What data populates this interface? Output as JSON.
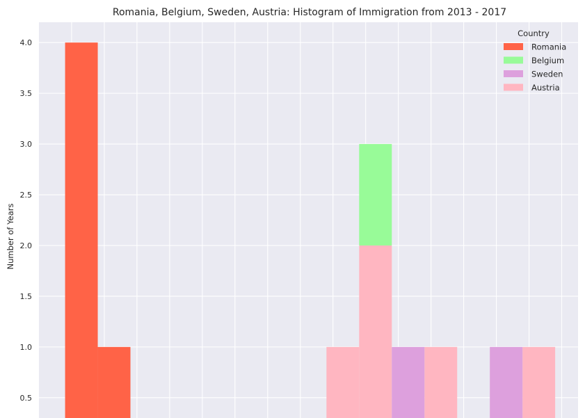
{
  "chart_data": {
    "type": "bar",
    "title": "Romania, Belgium, Sweden, Austria: Histogram of Immigration from 2013 - 2017",
    "xlabel": "",
    "ylabel": "Number of Years",
    "ylim": [
      0.3,
      4.2
    ],
    "xlim": [
      0,
      16.5
    ],
    "yticks": [
      0.5,
      1.0,
      1.5,
      2.0,
      2.5,
      3.0,
      3.5,
      4.0
    ],
    "ytick_labels": [
      "0.5",
      "1.0",
      "1.5",
      "2.0",
      "2.5",
      "3.0",
      "3.5",
      "4.0"
    ],
    "x_gridlines": [
      1,
      2,
      3,
      4,
      5,
      6,
      7,
      8,
      9,
      10,
      11,
      12,
      13,
      14,
      15,
      16
    ],
    "stacked": true,
    "grid": true,
    "legend": {
      "title": "Country",
      "position": "top-right"
    },
    "series": [
      {
        "name": "Romania",
        "color": "#ff6347",
        "bins": [
          {
            "x0": 0.8,
            "x1": 1.8,
            "value": 4
          },
          {
            "x0": 1.8,
            "x1": 2.8,
            "value": 1
          }
        ]
      },
      {
        "name": "Austria",
        "color": "#ffb6c1",
        "bins": [
          {
            "x0": 8.8,
            "x1": 9.8,
            "value": 1
          },
          {
            "x0": 9.8,
            "x1": 10.8,
            "value": 2
          },
          {
            "x0": 11.8,
            "x1": 12.8,
            "value": 1
          },
          {
            "x0": 14.8,
            "x1": 15.8,
            "value": 1
          }
        ]
      },
      {
        "name": "Sweden",
        "color": "#dda0dd",
        "bins": [
          {
            "x0": 10.8,
            "x1": 11.8,
            "value": 1
          },
          {
            "x0": 13.8,
            "x1": 14.8,
            "value": 1
          }
        ]
      },
      {
        "name": "Belgium",
        "color": "#98fb98",
        "bins": [
          {
            "x0": 9.8,
            "x1": 10.8,
            "value": 1
          }
        ]
      }
    ],
    "legend_order": [
      "Romania",
      "Belgium",
      "Sweden",
      "Austria"
    ]
  },
  "style": {
    "plot_background": "#eaeaf2",
    "grid_color": "#ffffff",
    "text_color": "#262626"
  }
}
